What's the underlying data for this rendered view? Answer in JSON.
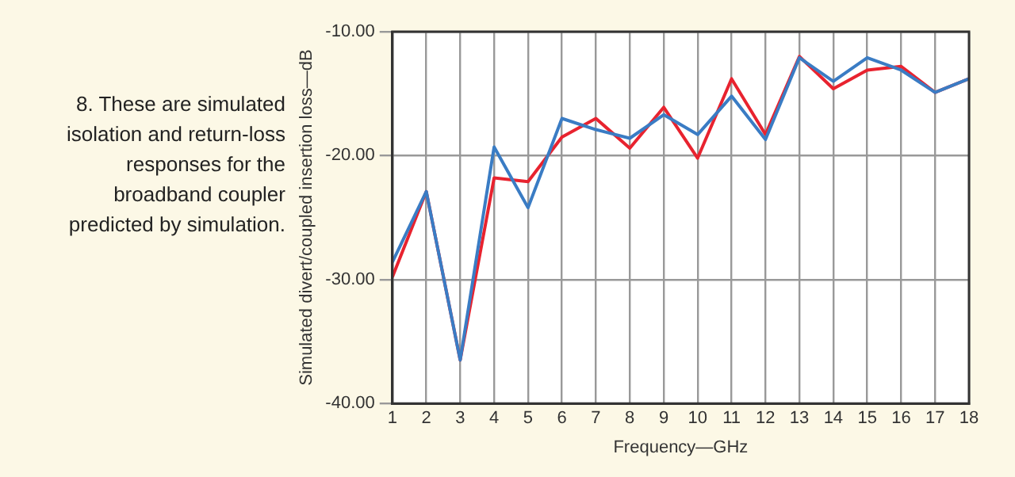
{
  "chart_data": {
    "type": "line",
    "xlabel": "Frequency—GHz",
    "ylabel": "Simulated divert/coupled insertion loss—dB",
    "annotations": [
      "8. These are simulated isolation and return-loss responses for the broadband coupler predicted by simulation."
    ],
    "x": [
      1,
      2,
      3,
      4,
      5,
      6,
      7,
      8,
      9,
      10,
      11,
      12,
      13,
      14,
      15,
      16,
      17,
      18
    ],
    "series": [
      {
        "color": "#3a7cc4",
        "values": [
          -28.6,
          -22.9,
          -36.5,
          -19.3,
          -24.2,
          -17.0,
          -17.9,
          -18.6,
          -16.7,
          -18.3,
          -15.2,
          -18.7,
          -12.1,
          -14.0,
          -12.1,
          -13.1,
          -14.9,
          -13.8
        ]
      },
      {
        "color": "#e8232f",
        "values": [
          -29.8,
          -22.9,
          -36.5,
          -21.8,
          -22.1,
          -18.5,
          -17.0,
          -19.4,
          -16.1,
          -20.2,
          -13.8,
          -18.3,
          -12.0,
          -14.6,
          -13.1,
          -12.8,
          -14.9,
          -13.8
        ]
      }
    ],
    "xlim": [
      1,
      18
    ],
    "xticks": [
      1,
      2,
      3,
      4,
      5,
      6,
      7,
      8,
      9,
      10,
      11,
      12,
      13,
      14,
      15,
      16,
      17,
      18
    ],
    "ylim": [
      -40,
      -10
    ],
    "yticks": [
      {
        "value": -40,
        "label": "-40.00"
      },
      {
        "value": -30,
        "label": "-30.00"
      },
      {
        "value": -20,
        "label": "-20.00"
      },
      {
        "value": -10,
        "label": "-10.00"
      }
    ],
    "grid": true,
    "marker": "none",
    "line_style": "solid"
  }
}
